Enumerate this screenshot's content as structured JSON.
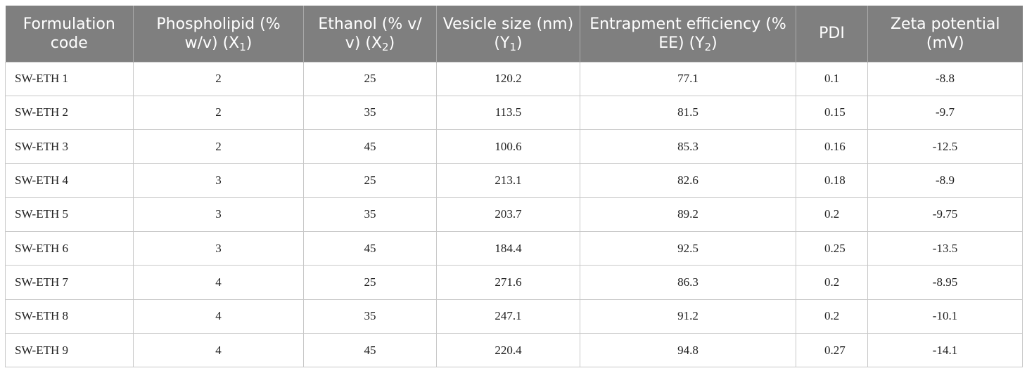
{
  "table": {
    "headers": [
      {
        "text": "Formulation code",
        "sub": "",
        "after": ""
      },
      {
        "text": "Phospholipid (% w/v) (X",
        "sub": "1",
        "after": ")"
      },
      {
        "text": "Ethanol (% v/ v) (X",
        "sub": "2",
        "after": ")"
      },
      {
        "text": "Vesicle size (nm) (Y",
        "sub": "1",
        "after": ")"
      },
      {
        "text": "Entrapment efficiency (% EE) (Y",
        "sub": "2",
        "after": ")"
      },
      {
        "text": "PDI",
        "sub": "",
        "after": ""
      },
      {
        "text": "Zeta potential (mV)",
        "sub": "",
        "after": ""
      }
    ],
    "rows": [
      [
        "SW-ETH 1",
        "2",
        "25",
        "120.2",
        "77.1",
        "0.1",
        "-8.8"
      ],
      [
        "SW-ETH 2",
        "2",
        "35",
        "113.5",
        "81.5",
        "0.15",
        "-9.7"
      ],
      [
        "SW-ETH 3",
        "2",
        "45",
        "100.6",
        "85.3",
        "0.16",
        "-12.5"
      ],
      [
        "SW-ETH 4",
        "3",
        "25",
        "213.1",
        "82.6",
        "0.18",
        "-8.9"
      ],
      [
        "SW-ETH 5",
        "3",
        "35",
        "203.7",
        "89.2",
        "0.2",
        "-9.75"
      ],
      [
        "SW-ETH 6",
        "3",
        "45",
        "184.4",
        "92.5",
        "0.25",
        "-13.5"
      ],
      [
        "SW-ETH 7",
        "4",
        "25",
        "271.6",
        "86.3",
        "0.2",
        "-8.95"
      ],
      [
        "SW-ETH 8",
        "4",
        "35",
        "247.1",
        "91.2",
        "0.2",
        "-10.1"
      ],
      [
        "SW-ETH 9",
        "4",
        "45",
        "220.4",
        "94.8",
        "0.27",
        "-14.1"
      ]
    ]
  }
}
